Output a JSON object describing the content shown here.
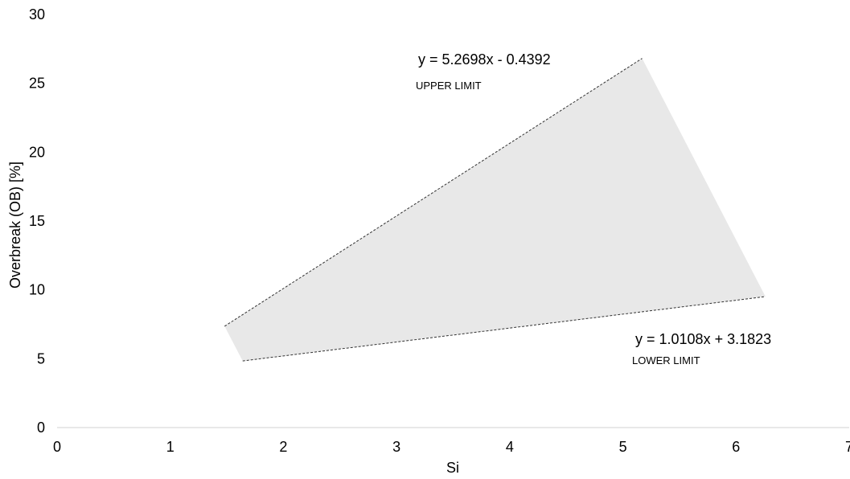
{
  "chart_data": {
    "type": "area",
    "title": "",
    "xlabel": "Si",
    "ylabel": "Overbreak (OB) [%]",
    "xlim": [
      0,
      7
    ],
    "ylim": [
      0,
      30
    ],
    "x_ticks": [
      0,
      1,
      2,
      3,
      4,
      5,
      6,
      7
    ],
    "y_ticks": [
      0,
      5,
      10,
      15,
      20,
      25,
      30
    ],
    "grid": false,
    "legend": "none",
    "series": [
      {
        "role": "upper",
        "equation": "y = 5.2698x - 0.4392",
        "label": "UPPER LIMIT",
        "slope": 5.2698,
        "intercept": -0.4392,
        "x": [
          1.48,
          5.17
        ],
        "y": [
          7.36,
          26.81
        ]
      },
      {
        "role": "lower",
        "equation": "y = 1.0108x + 3.1823",
        "label": "LOWER LIMIT",
        "slope": 1.0108,
        "intercept": 3.1823,
        "x": [
          1.64,
          6.26
        ],
        "y": [
          4.84,
          9.51
        ]
      }
    ],
    "region": {
      "x": [
        1.48,
        5.17,
        6.26,
        1.64
      ],
      "y": [
        7.36,
        26.81,
        9.51,
        4.84
      ]
    },
    "colors": {
      "fill": "#e8e8e8",
      "line": "#333333",
      "axis": "#d9d9d9"
    }
  }
}
